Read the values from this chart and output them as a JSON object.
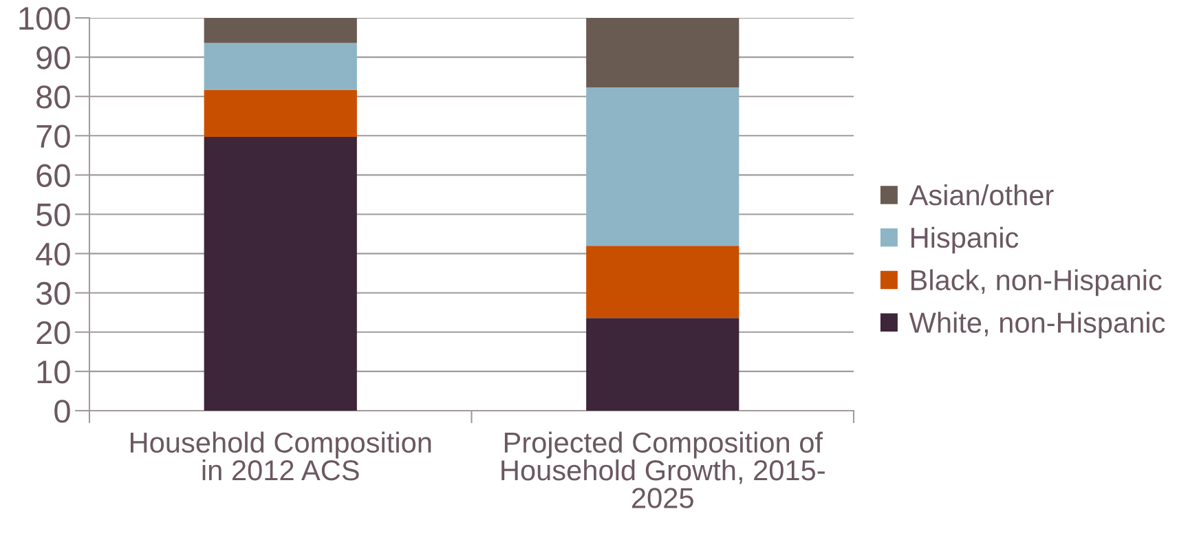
{
  "chart_data": {
    "type": "bar",
    "stacked": true,
    "categories": [
      "Household Composition\nin 2012 ACS",
      "Projected Composition of\nHousehold Growth, 2015-\n2025"
    ],
    "series": [
      {
        "name": "White, non-Hispanic",
        "color": "#3d2639",
        "values": [
          69.7,
          23.6
        ]
      },
      {
        "name": "Black, non-Hispanic",
        "color": "#c94f00",
        "values": [
          12.0,
          18.4
        ]
      },
      {
        "name": "Hispanic",
        "color": "#8db5c6",
        "values": [
          11.9,
          40.3
        ]
      },
      {
        "name": "Asian/other",
        "color": "#6a5b52",
        "values": [
          6.4,
          17.7
        ]
      }
    ],
    "ylim": [
      0,
      100
    ],
    "yticks": [
      0,
      10,
      20,
      30,
      40,
      50,
      60,
      70,
      80,
      90,
      100
    ],
    "grid": "y",
    "legend": "right"
  }
}
